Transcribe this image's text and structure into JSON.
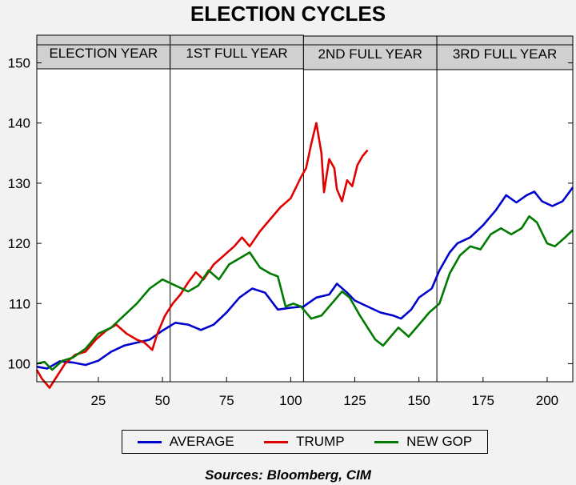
{
  "source": "Sources:  Bloomberg, CIM",
  "chart_data": {
    "type": "line",
    "title": "ELECTION CYCLES",
    "xlabel": "",
    "ylabel": "",
    "xlim": [
      1,
      210
    ],
    "ylim": [
      97,
      153
    ],
    "x_ticks": [
      25,
      50,
      75,
      100,
      125,
      150,
      175,
      200
    ],
    "y_ticks": [
      100,
      110,
      120,
      130,
      140,
      150
    ],
    "grid": false,
    "legend_position": "bottom",
    "periods": [
      {
        "label": "ELECTION YEAR",
        "x_start": 1,
        "x_end": 53
      },
      {
        "label": "1ST FULL YEAR",
        "x_start": 53,
        "x_end": 105
      },
      {
        "label": "2ND FULL YEAR",
        "x_start": 105,
        "x_end": 157
      },
      {
        "label": "3RD FULL YEAR",
        "x_start": 157,
        "x_end": 210
      }
    ],
    "series": [
      {
        "name": "AVERAGE",
        "color": "#0000cc",
        "points": [
          [
            1,
            99.5
          ],
          [
            5,
            99.2
          ],
          [
            10,
            100.4
          ],
          [
            15,
            100.2
          ],
          [
            20,
            99.8
          ],
          [
            25,
            100.5
          ],
          [
            30,
            102.0
          ],
          [
            35,
            103.0
          ],
          [
            40,
            103.5
          ],
          [
            45,
            104.0
          ],
          [
            50,
            105.5
          ],
          [
            55,
            106.8
          ],
          [
            60,
            106.5
          ],
          [
            65,
            105.6
          ],
          [
            70,
            106.5
          ],
          [
            75,
            108.5
          ],
          [
            80,
            111.0
          ],
          [
            85,
            112.5
          ],
          [
            90,
            111.8
          ],
          [
            95,
            109.0
          ],
          [
            100,
            109.3
          ],
          [
            105,
            109.5
          ],
          [
            110,
            111.0
          ],
          [
            115,
            111.5
          ],
          [
            118,
            113.3
          ],
          [
            122,
            111.8
          ],
          [
            125,
            110.5
          ],
          [
            130,
            109.5
          ],
          [
            135,
            108.5
          ],
          [
            140,
            108.0
          ],
          [
            143,
            107.5
          ],
          [
            147,
            109.0
          ],
          [
            150,
            111.0
          ],
          [
            155,
            112.5
          ],
          [
            158,
            115.5
          ],
          [
            162,
            118.5
          ],
          [
            165,
            120.0
          ],
          [
            170,
            121.0
          ],
          [
            175,
            123.0
          ],
          [
            180,
            125.5
          ],
          [
            184,
            128.0
          ],
          [
            188,
            126.8
          ],
          [
            192,
            128.0
          ],
          [
            195,
            128.6
          ],
          [
            198,
            127.0
          ],
          [
            202,
            126.2
          ],
          [
            206,
            127.0
          ],
          [
            210,
            129.3
          ]
        ]
      },
      {
        "name": "TRUMP",
        "color": "#e00000",
        "points": [
          [
            1,
            99.0
          ],
          [
            3,
            97.5
          ],
          [
            6,
            96.0
          ],
          [
            9,
            98.0
          ],
          [
            12,
            100.0
          ],
          [
            16,
            101.5
          ],
          [
            20,
            102.0
          ],
          [
            24,
            104.0
          ],
          [
            28,
            105.5
          ],
          [
            32,
            106.5
          ],
          [
            36,
            105.0
          ],
          [
            40,
            104.0
          ],
          [
            43,
            103.5
          ],
          [
            46,
            102.3
          ],
          [
            48,
            105.0
          ],
          [
            51,
            108.0
          ],
          [
            54,
            110.0
          ],
          [
            57,
            111.5
          ],
          [
            60,
            113.5
          ],
          [
            63,
            115.2
          ],
          [
            66,
            114.0
          ],
          [
            70,
            116.5
          ],
          [
            74,
            118.0
          ],
          [
            78,
            119.5
          ],
          [
            81,
            121.0
          ],
          [
            84,
            119.5
          ],
          [
            88,
            122.0
          ],
          [
            92,
            124.0
          ],
          [
            96,
            126.0
          ],
          [
            100,
            127.5
          ],
          [
            104,
            131.0
          ],
          [
            106,
            132.5
          ],
          [
            108,
            136.5
          ],
          [
            110,
            140.0
          ],
          [
            112,
            135.0
          ],
          [
            113,
            128.5
          ],
          [
            115,
            134.0
          ],
          [
            117,
            132.5
          ],
          [
            118,
            129.0
          ],
          [
            120,
            127.0
          ],
          [
            122,
            130.5
          ],
          [
            124,
            129.5
          ],
          [
            126,
            133.0
          ],
          [
            128,
            134.5
          ],
          [
            130,
            135.5
          ]
        ]
      },
      {
        "name": "NEW GOP",
        "color": "#007a00",
        "points": [
          [
            1,
            100.0
          ],
          [
            4,
            100.3
          ],
          [
            7,
            99.0
          ],
          [
            11,
            100.5
          ],
          [
            15,
            101.0
          ],
          [
            20,
            102.5
          ],
          [
            25,
            105.0
          ],
          [
            30,
            106.0
          ],
          [
            35,
            108.0
          ],
          [
            40,
            110.0
          ],
          [
            45,
            112.5
          ],
          [
            50,
            114.0
          ],
          [
            55,
            113.0
          ],
          [
            60,
            112.0
          ],
          [
            64,
            113.0
          ],
          [
            68,
            115.5
          ],
          [
            72,
            114.0
          ],
          [
            76,
            116.5
          ],
          [
            80,
            117.5
          ],
          [
            84,
            118.5
          ],
          [
            88,
            116.0
          ],
          [
            92,
            115.0
          ],
          [
            95,
            114.5
          ],
          [
            98,
            109.5
          ],
          [
            101,
            110.0
          ],
          [
            104,
            109.5
          ],
          [
            108,
            107.5
          ],
          [
            112,
            108.0
          ],
          [
            116,
            110.0
          ],
          [
            120,
            112.0
          ],
          [
            123,
            111.0
          ],
          [
            127,
            108.0
          ],
          [
            130,
            106.0
          ],
          [
            133,
            104.0
          ],
          [
            136,
            103.0
          ],
          [
            139,
            104.5
          ],
          [
            142,
            106.0
          ],
          [
            146,
            104.5
          ],
          [
            150,
            106.5
          ],
          [
            154,
            108.5
          ],
          [
            158,
            110.0
          ],
          [
            162,
            115.0
          ],
          [
            166,
            118.0
          ],
          [
            170,
            119.5
          ],
          [
            174,
            119.0
          ],
          [
            178,
            121.5
          ],
          [
            182,
            122.5
          ],
          [
            186,
            121.5
          ],
          [
            190,
            122.5
          ],
          [
            193,
            124.5
          ],
          [
            196,
            123.5
          ],
          [
            200,
            120.0
          ],
          [
            203,
            119.5
          ],
          [
            207,
            121.0
          ],
          [
            210,
            122.2
          ]
        ]
      }
    ]
  }
}
